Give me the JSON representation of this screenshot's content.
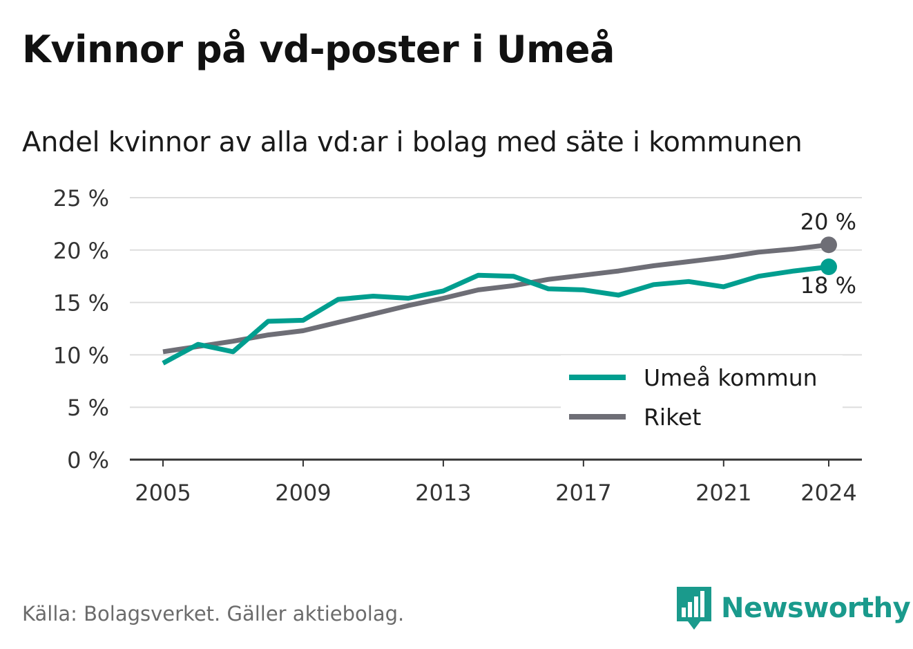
{
  "title": "Kvinnor på vd-poster i Umeå",
  "subtitle": "Andel kvinnor av alla vd:ar i bolag med säte i kommunen",
  "source": "Källa: Bolagsverket. Gäller aktiebolag.",
  "brand": "Newsworthy",
  "colors": {
    "umea": "#009e8f",
    "riket": "#6e6e76",
    "grid": "#dddddd",
    "axis": "#333333",
    "brand": "#1a9a8c"
  },
  "chart_data": {
    "type": "line",
    "x": [
      2005,
      2006,
      2007,
      2008,
      2009,
      2010,
      2011,
      2012,
      2013,
      2014,
      2015,
      2016,
      2017,
      2018,
      2019,
      2020,
      2021,
      2022,
      2023,
      2024
    ],
    "x_tick_labels": [
      "2005",
      "2009",
      "2013",
      "2017",
      "2021",
      "2024"
    ],
    "y_tick_labels": [
      "0 %",
      "5 %",
      "10 %",
      "15 %",
      "20 %",
      "25 %"
    ],
    "y_ticks": [
      0,
      5,
      10,
      15,
      20,
      25
    ],
    "ylim": [
      0,
      25
    ],
    "xlim": [
      2005,
      2024
    ],
    "grid": true,
    "legend_position": "bottom-right",
    "series": [
      {
        "name": "Umeå kommun",
        "color": "#009e8f",
        "end_label": "18 %",
        "values": [
          9.2,
          11.0,
          10.3,
          13.2,
          13.3,
          15.3,
          15.6,
          15.4,
          16.1,
          17.6,
          17.5,
          16.3,
          16.2,
          15.7,
          16.7,
          17.0,
          16.5,
          17.5,
          18.0,
          18.4
        ]
      },
      {
        "name": "Riket",
        "color": "#6e6e76",
        "end_label": "20 %",
        "values": [
          10.3,
          10.8,
          11.3,
          11.9,
          12.3,
          13.1,
          13.9,
          14.7,
          15.4,
          16.2,
          16.6,
          17.2,
          17.6,
          18.0,
          18.5,
          18.9,
          19.3,
          19.8,
          20.1,
          20.5
        ]
      }
    ]
  }
}
